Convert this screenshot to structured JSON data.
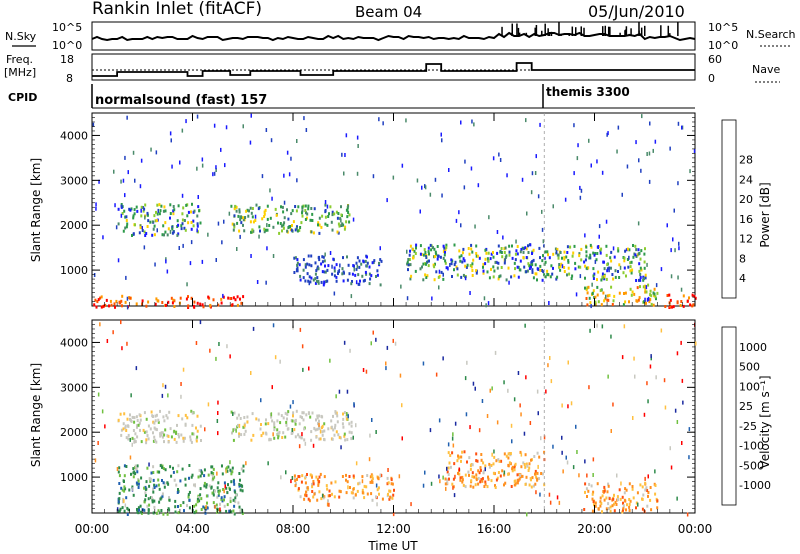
{
  "header": {
    "title": "Rankin Inlet (fitACF)",
    "beam": "Beam 04",
    "date": "05/Jun/2010"
  },
  "top_panels": {
    "nsky_label": "N.Sky",
    "nsky_ticks": [
      "10^5",
      "10^0"
    ],
    "nsearch_label": "N.Search",
    "nsearch_ticks": [
      "10^5",
      "10^0"
    ],
    "freq_label": "Freq.",
    "freq_unit": "[MHz]",
    "freq_ticks": [
      "18",
      "8"
    ],
    "nave_label": "Nave",
    "nave_ticks": [
      "60",
      "0"
    ],
    "cpid_label": "CPID",
    "cpid_modes": [
      {
        "name": "normalsound (fast) 157",
        "start_hour": 0.0
      },
      {
        "name": "themis 3300",
        "start_hour": 18.0
      }
    ]
  },
  "chart_data": [
    {
      "type": "heatmap",
      "panel": "power",
      "ylabel": "Slant Range [km]",
      "xlabel": "",
      "xlim": [
        0,
        24
      ],
      "ylim": [
        200,
        4500
      ],
      "yticks": [
        "1000",
        "2000",
        "3000",
        "4000"
      ],
      "colorbar": {
        "label": "Power [dB]",
        "ticks": [
          "4",
          "8",
          "12",
          "16",
          "20",
          "24",
          "28"
        ],
        "colors": [
          "#1a1aff",
          "#2040c0",
          "#4a8a6a",
          "#2d9a4a",
          "#8ccc30",
          "#ffd000",
          "#ff9900",
          "#ff5500",
          "#ff0000"
        ]
      },
      "regions": [
        {
          "x0": 1.0,
          "x1": 4.3,
          "y0": 1800,
          "y1": 2500,
          "level": "low-mid"
        },
        {
          "x0": 5.5,
          "x1": 10.3,
          "y0": 1850,
          "y1": 2500,
          "level": "mid"
        },
        {
          "x0": 0.0,
          "x1": 6.0,
          "y0": 200,
          "y1": 450,
          "level": "high"
        },
        {
          "x0": 8.0,
          "x1": 11.5,
          "y0": 700,
          "y1": 1350,
          "level": "low"
        },
        {
          "x0": 12.5,
          "x1": 22.0,
          "y0": 800,
          "y1": 1600,
          "level": "low-mid"
        },
        {
          "x0": 19.5,
          "x1": 22.5,
          "y0": 250,
          "y1": 700,
          "level": "mid-high"
        },
        {
          "x0": 22.5,
          "x1": 24.0,
          "y0": 200,
          "y1": 500,
          "level": "high"
        }
      ]
    },
    {
      "type": "heatmap",
      "panel": "velocity",
      "ylabel": "Slant Range [km]",
      "xlabel": "Time UT",
      "xlim": [
        0,
        24
      ],
      "ylim": [
        200,
        4500
      ],
      "xticks": [
        "00:00",
        "04:00",
        "08:00",
        "12:00",
        "16:00",
        "20:00",
        "00:00"
      ],
      "yticks": [
        "1000",
        "2000",
        "3000",
        "4000"
      ],
      "colorbar": {
        "label": "Velocity [m s⁻¹]",
        "ticks": [
          "1000",
          "500",
          "100",
          "25",
          "-25",
          "-100",
          "-500",
          "-1000"
        ],
        "colors": [
          "#1a2aa0",
          "#2060b0",
          "#2d8a4a",
          "#70c040",
          "#c8c8c0",
          "#ffc040",
          "#ff9020",
          "#ff5010",
          "#ff0000"
        ]
      },
      "regions": [
        {
          "x0": 1.0,
          "x1": 4.3,
          "y0": 1800,
          "y1": 2500,
          "level": "ground"
        },
        {
          "x0": 5.5,
          "x1": 10.3,
          "y0": 1850,
          "y1": 2500,
          "level": "ground"
        },
        {
          "x0": 1.0,
          "x1": 6.0,
          "y0": 200,
          "y1": 1300,
          "level": "toward"
        },
        {
          "x0": 8.0,
          "x1": 12.0,
          "y0": 500,
          "y1": 1100,
          "level": "away"
        },
        {
          "x0": 14.0,
          "x1": 18.0,
          "y0": 800,
          "y1": 1600,
          "level": "away"
        },
        {
          "x0": 19.5,
          "x1": 22.5,
          "y0": 250,
          "y1": 900,
          "level": "away"
        }
      ]
    }
  ]
}
